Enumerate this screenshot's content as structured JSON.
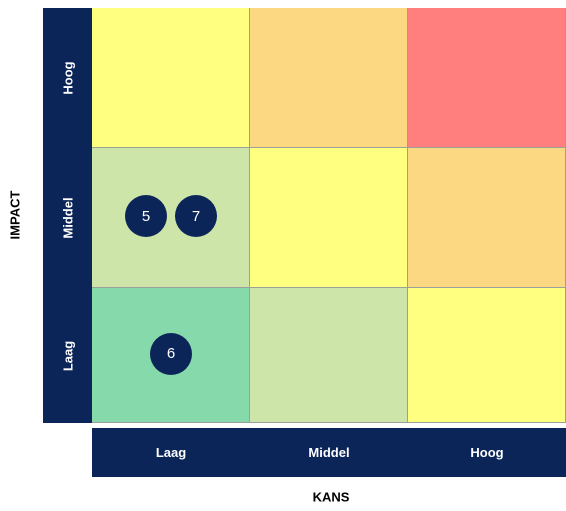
{
  "axes": {
    "impact_title": "IMPACT",
    "kans_title": "KANS",
    "impact_levels": [
      "Hoog",
      "Middel",
      "Laag"
    ],
    "kans_levels": [
      "Laag",
      "Middel",
      "Hoog"
    ]
  },
  "matrix": {
    "cells": [
      {
        "impact": "Hoog",
        "kans": "Laag",
        "color": "#ffff80"
      },
      {
        "impact": "Hoog",
        "kans": "Middel",
        "color": "#fcd883"
      },
      {
        "impact": "Hoog",
        "kans": "Hoog",
        "color": "#ff7f7f"
      },
      {
        "impact": "Middel",
        "kans": "Laag",
        "color": "#cde5a8"
      },
      {
        "impact": "Middel",
        "kans": "Middel",
        "color": "#ffff80"
      },
      {
        "impact": "Middel",
        "kans": "Hoog",
        "color": "#fcd883"
      },
      {
        "impact": "Laag",
        "kans": "Laag",
        "color": "#85d9ab"
      },
      {
        "impact": "Laag",
        "kans": "Middel",
        "color": "#cde5a8"
      },
      {
        "impact": "Laag",
        "kans": "Hoog",
        "color": "#ffff80"
      }
    ],
    "markers": [
      {
        "label": "5",
        "impact": "Middel",
        "kans": "Laag"
      },
      {
        "label": "7",
        "impact": "Middel",
        "kans": "Laag"
      },
      {
        "label": "6",
        "impact": "Laag",
        "kans": "Laag"
      }
    ]
  },
  "colors": {
    "axis_bar": "#0b2559",
    "marker": "#0b2559"
  }
}
